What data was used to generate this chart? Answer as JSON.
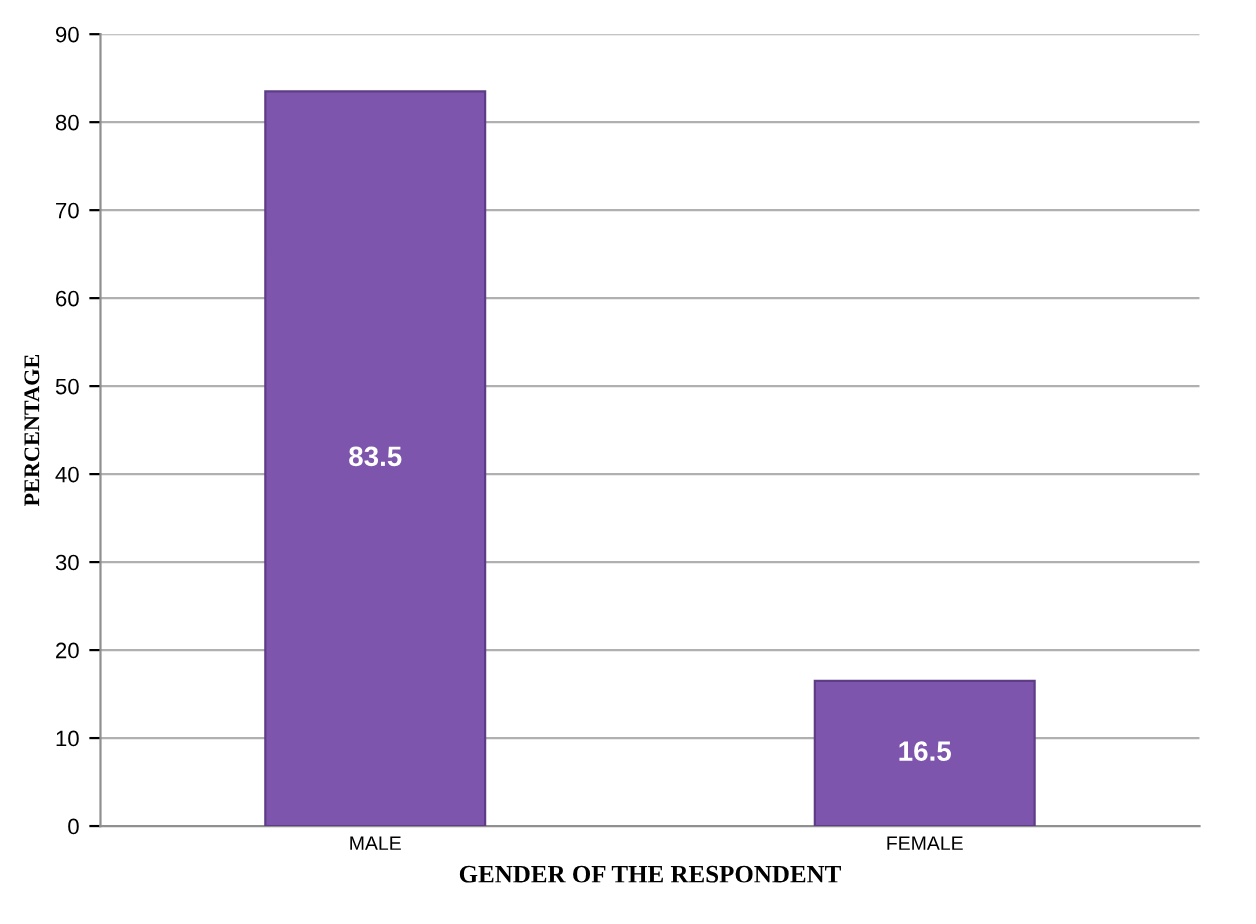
{
  "chart_data": {
    "type": "bar",
    "xlabel": "GENDER OF THE RESPONDENT",
    "ylabel": "PERCENTAGE",
    "categories": [
      "MALE",
      "FEMALE"
    ],
    "values": [
      83.5,
      16.5
    ],
    "color": "#7d55ad",
    "ylim": [
      0,
      90
    ],
    "yticks": [
      0,
      10,
      20,
      30,
      40,
      50,
      60,
      70,
      80,
      90
    ],
    "grid": "y",
    "data_labels": true
  }
}
